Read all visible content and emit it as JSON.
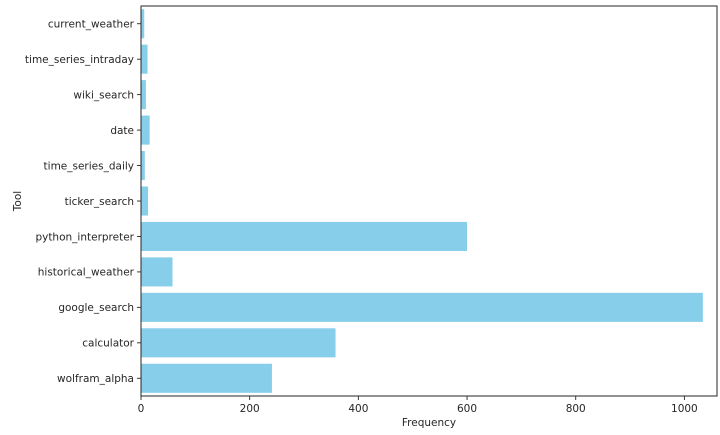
{
  "chart_data": {
    "type": "bar",
    "orientation": "horizontal",
    "categories": [
      "wolfram_alpha",
      "calculator",
      "google_search",
      "historical_weather",
      "python_interpreter",
      "ticker_search",
      "time_series_daily",
      "date",
      "wiki_search",
      "time_series_intraday",
      "current_weather"
    ],
    "values": [
      241,
      358,
      1034,
      58,
      600,
      13,
      7,
      16,
      9,
      12,
      6
    ],
    "xlabel": "Frequency",
    "ylabel": "Tool",
    "xlim": [
      0,
      1060
    ],
    "xticks": [
      0,
      200,
      400,
      600,
      800,
      1000
    ],
    "grid": false,
    "legend": "none",
    "bar_color": "#87ceeb",
    "axis_color": "#262626"
  }
}
